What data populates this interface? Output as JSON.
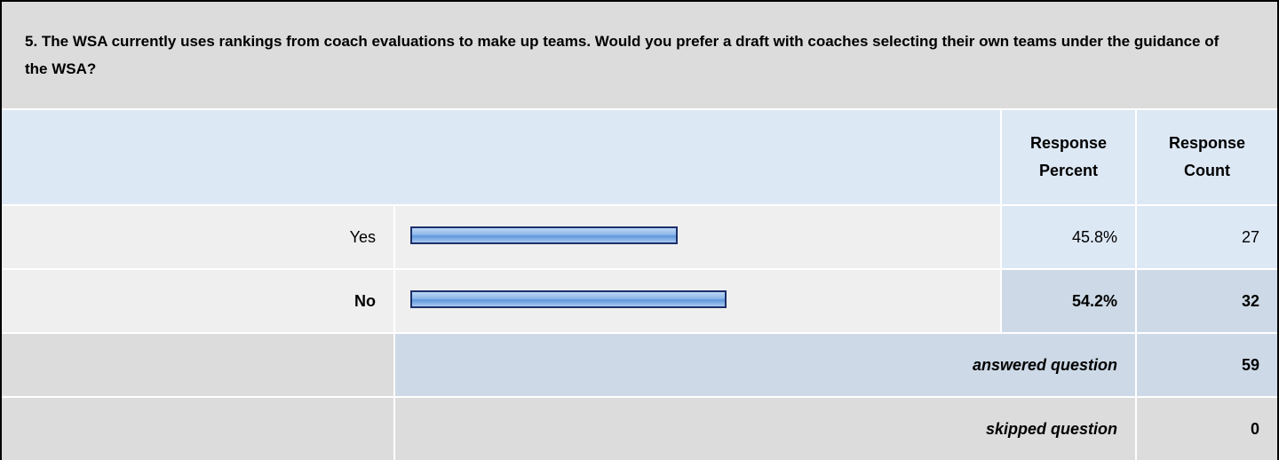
{
  "question": "5. The WSA currently uses rankings from coach evaluations to make up teams. Would you prefer a draft with coaches selecting their own teams under the guidance of the WSA?",
  "table": {
    "headers": [
      "Response Percent",
      "Response Count"
    ],
    "rows": [
      {
        "label": "Yes",
        "percent": 45.8,
        "percent_label": "45.8%",
        "count": 27
      },
      {
        "label": "No",
        "percent": 54.2,
        "percent_label": "54.2%",
        "count": 32
      }
    ],
    "answered": {
      "label": "answered question",
      "count": 59
    },
    "skipped": {
      "label": "skipped question",
      "count": 0
    }
  }
}
